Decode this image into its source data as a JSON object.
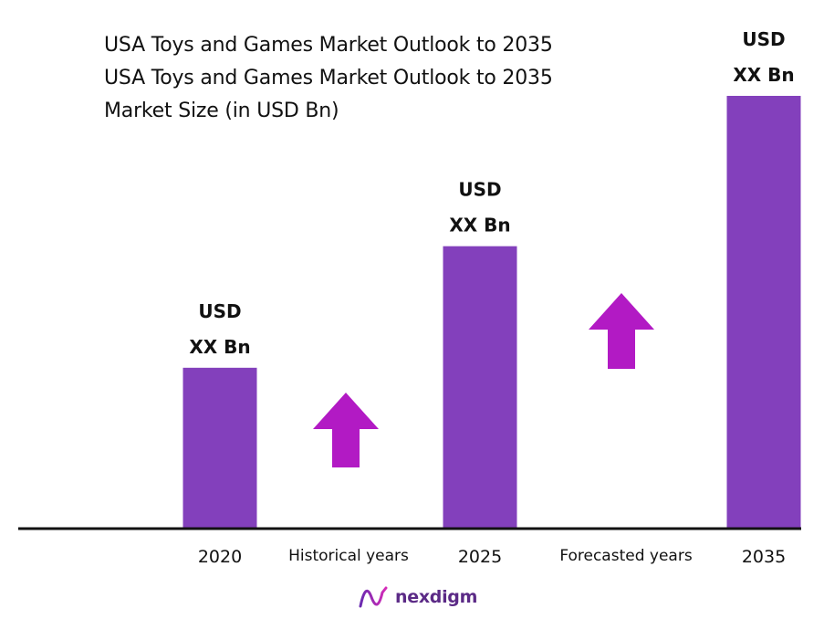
{
  "chart_data": {
    "type": "bar",
    "title_lines": [
      "USA Toys and Games Market Outlook to 2035",
      "USA Toys and Games Market Outlook to 2035",
      "Market Size (in USD Bn)"
    ],
    "categories": [
      "2020",
      "2025",
      "2035"
    ],
    "values": [
      1.0,
      1.76,
      2.7
    ],
    "bar_labels": [
      [
        "USD",
        "XX Bn"
      ],
      [
        "USD",
        "XX Bn"
      ],
      [
        "USD",
        "XX Bn"
      ]
    ],
    "period_labels": [
      "Historical years",
      "Forecasted years"
    ],
    "ylim": [
      0,
      2.7
    ],
    "grid": false,
    "legend": "none"
  },
  "colors": {
    "bar": "#8340bc",
    "arrow": "#b21ac4",
    "axis": "#111111",
    "text": "#111111",
    "logo": "#5b2a86"
  },
  "branding": {
    "logo_text": "nexdigm",
    "logo_icon": "nexdigm-wave-logo-icon"
  }
}
